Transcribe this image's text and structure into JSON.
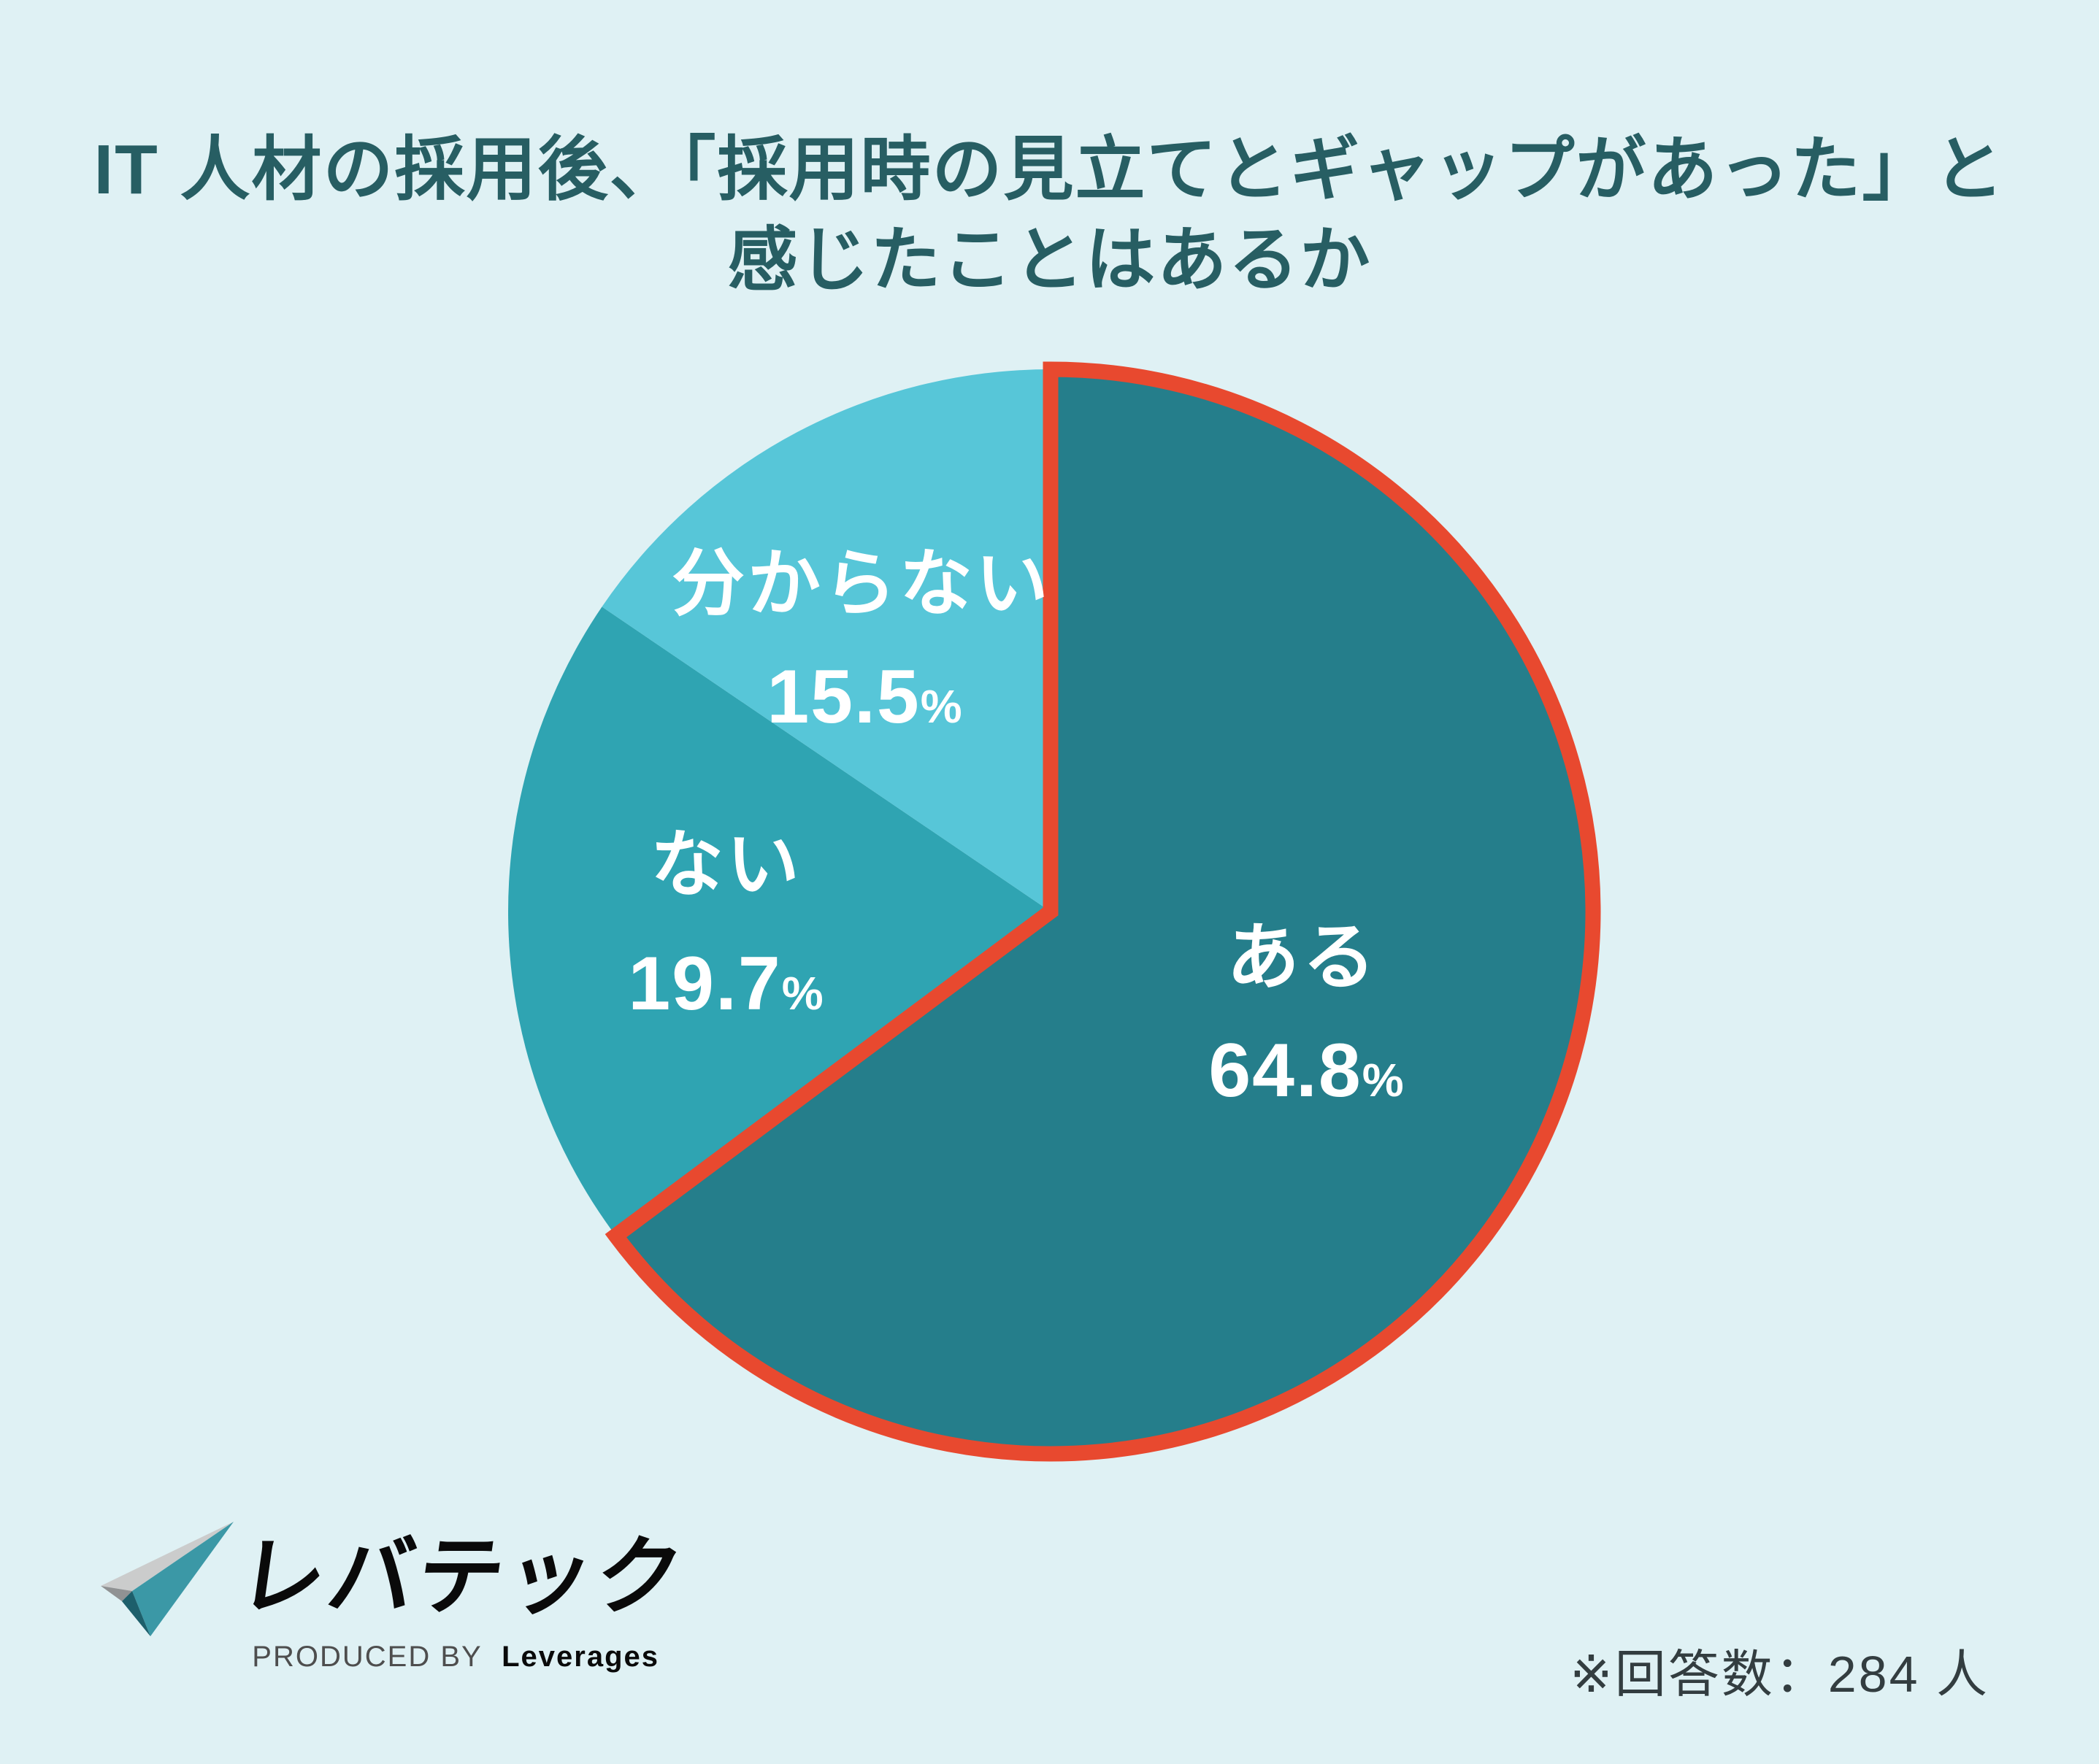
{
  "page": {
    "background": "#dff1f4"
  },
  "title": {
    "line1": "IT 人材の採用後、「採用時の見立てとギャップがあった」と",
    "line2": "感じたことはあるか",
    "color": "#275e63"
  },
  "chart_data": {
    "type": "pie",
    "title": "IT 人材の採用後、「採用時の見立てとギャップがあった」と感じたことはあるか",
    "unit": "%",
    "direction": "clockwise",
    "start_angle_deg": 0,
    "total": 100,
    "slices": [
      {
        "label": "ある",
        "value": 64.8,
        "color": "#257e8b",
        "highlighted": true
      },
      {
        "label": "ない",
        "value": 19.7,
        "color": "#2fa4b2",
        "highlighted": false
      },
      {
        "label": "分からない",
        "value": 15.5,
        "color": "#57c6d8",
        "highlighted": false
      }
    ],
    "highlight_stroke": "#e8492f",
    "legend": "labels-inside-slices",
    "label_color": "#ffffff"
  },
  "footer": {
    "brand": "レバテック",
    "produced_by": "PRODUCED BY",
    "company": "Leverages",
    "note": "※回答数：284 人",
    "logo_colors": {
      "light_gray": "#cbcccc",
      "gray": "#909293",
      "teal": "#3b98a6",
      "dark_teal": "#1d5f6b"
    }
  }
}
